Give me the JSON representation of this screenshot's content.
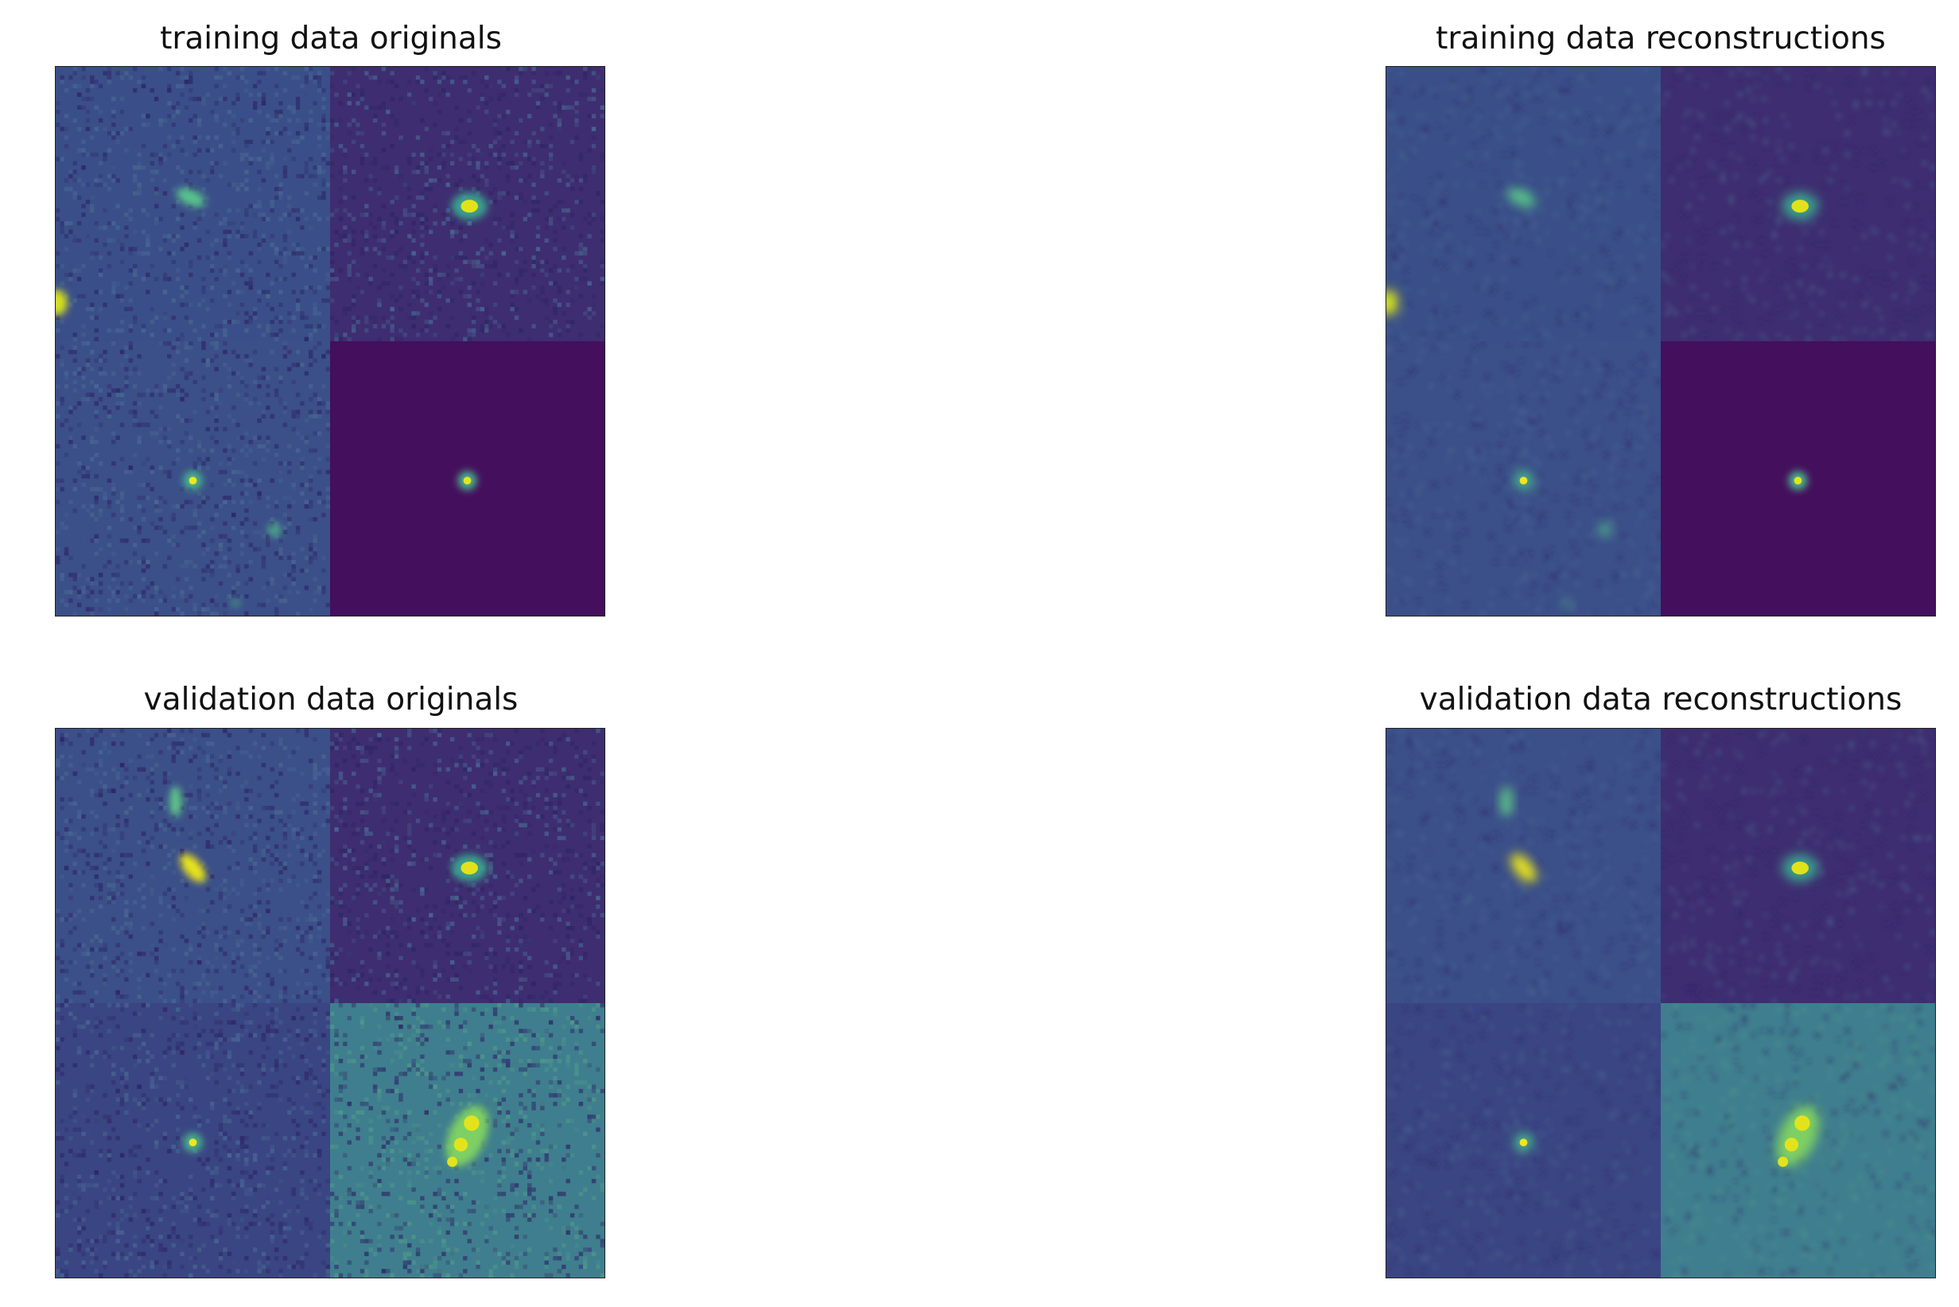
{
  "panels": [
    {
      "title": "training data originals",
      "kind": "original",
      "tiles": [
        {
          "bg": "#3a4f89",
          "sources": [
            {
              "shape": "elongated",
              "color": "#58c48b"
            },
            {
              "shape": "edge-blob",
              "color": "#d7e21f"
            }
          ],
          "texture": "noisy"
        },
        {
          "bg": "#3e2d70",
          "sources": [
            {
              "shape": "compact",
              "color": "#e2e21c"
            }
          ],
          "texture": "noisy"
        },
        {
          "bg": "#3b4f89",
          "sources": [
            {
              "shape": "point",
              "color": "#f1e51d"
            },
            {
              "shape": "faint",
              "color": "#4ea88a"
            }
          ],
          "texture": "noisy"
        },
        {
          "bg": "#440f5c",
          "sources": [
            {
              "shape": "point",
              "color": "#e6e41d"
            }
          ],
          "texture": "smooth"
        }
      ]
    },
    {
      "title": "training data reconstructions",
      "kind": "reconstruction",
      "tiles": [
        {
          "bg": "#3a4f89",
          "sources": [
            {
              "shape": "elongated",
              "color": "#58c48b"
            },
            {
              "shape": "edge-blob",
              "color": "#d7e21f"
            }
          ],
          "texture": "blurred"
        },
        {
          "bg": "#3e2d70",
          "sources": [
            {
              "shape": "compact",
              "color": "#e2e21c"
            }
          ],
          "texture": "blurred"
        },
        {
          "bg": "#3b4f89",
          "sources": [
            {
              "shape": "point",
              "color": "#f1e51d"
            },
            {
              "shape": "faint",
              "color": "#4ea88a"
            }
          ],
          "texture": "blurred"
        },
        {
          "bg": "#440f5c",
          "sources": [
            {
              "shape": "point",
              "color": "#e6e41d"
            }
          ],
          "texture": "smooth"
        }
      ]
    },
    {
      "title": "validation data originals",
      "kind": "original",
      "tiles": [
        {
          "bg": "#3b4f89",
          "sources": [
            {
              "shape": "arc",
              "color": "#e8e31d"
            }
          ],
          "texture": "noisy"
        },
        {
          "bg": "#3e2d70",
          "sources": [
            {
              "shape": "compact",
              "color": "#e2e21c"
            }
          ],
          "texture": "noisy"
        },
        {
          "bg": "#3a4583",
          "sources": [
            {
              "shape": "point",
              "color": "#f1e51d"
            }
          ],
          "texture": "noisy"
        },
        {
          "bg": "#3f7e8e",
          "sources": [
            {
              "shape": "irregular",
              "color": "#e3e31d"
            }
          ],
          "texture": "noisy"
        }
      ]
    },
    {
      "title": "validation data reconstructions",
      "kind": "reconstruction",
      "tiles": [
        {
          "bg": "#3b4f89",
          "sources": [
            {
              "shape": "arc",
              "color": "#e8e31d"
            }
          ],
          "texture": "blurred"
        },
        {
          "bg": "#3e2d70",
          "sources": [
            {
              "shape": "compact",
              "color": "#e2e21c"
            }
          ],
          "texture": "blurred"
        },
        {
          "bg": "#3a4583",
          "sources": [
            {
              "shape": "point",
              "color": "#f1e51d"
            }
          ],
          "texture": "blurred"
        },
        {
          "bg": "#3f7e8e",
          "sources": [
            {
              "shape": "irregular",
              "color": "#e3e31d"
            }
          ],
          "texture": "blurred"
        }
      ]
    }
  ]
}
